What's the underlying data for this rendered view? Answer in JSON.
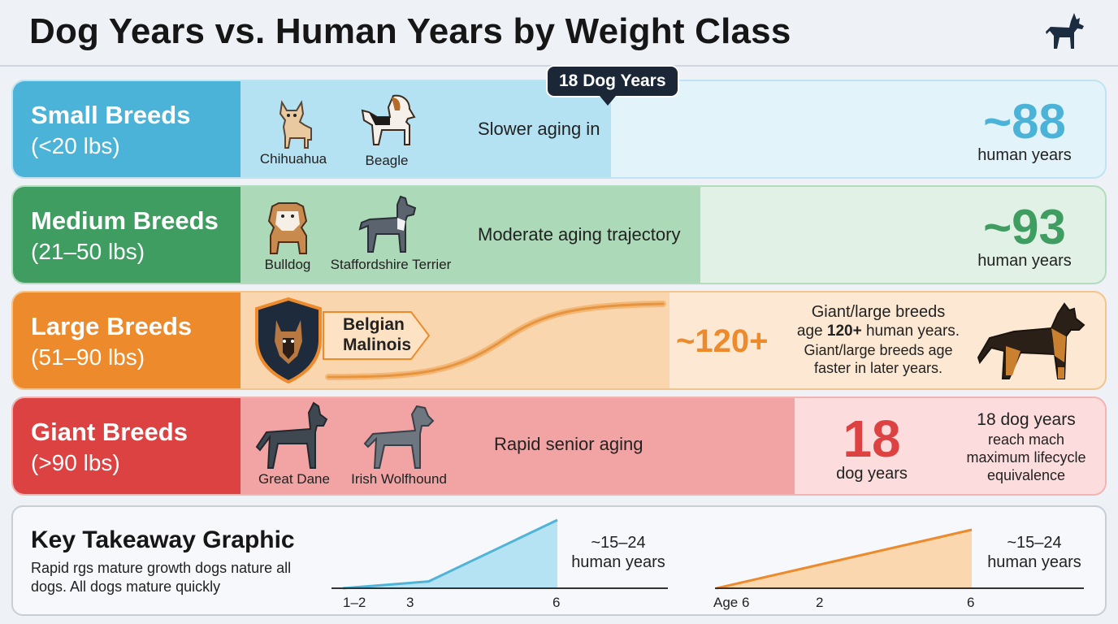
{
  "header": {
    "title": "Dog Years vs. Human Years by Weight Class",
    "logo_icon": "dog-silhouette-icon"
  },
  "callout": {
    "label": "18 Dog Years"
  },
  "rows": {
    "small": {
      "name": "Small Breeds",
      "weight": "(<20 lbs)",
      "breeds": [
        "Chihuahua",
        "Beagle"
      ],
      "trait": "Slower aging in",
      "value": "~88",
      "unit": "human years",
      "color": "#4bb3d8",
      "bar_fraction": 0.41
    },
    "medium": {
      "name": "Medium Breeds",
      "weight": "(21–50 lbs)",
      "breeds": [
        "Bulldog",
        "Staffordshire Terrier"
      ],
      "trait": "Moderate aging trajectory",
      "value": "~93",
      "unit": "human years",
      "color": "#3f9d62",
      "bar_fraction": 0.53
    },
    "large": {
      "name": "Large Breeds",
      "weight": "(51–90 lbs)",
      "badge": "Belgian Malinois",
      "value": "~120+",
      "note_line1": "Giant/large breeds",
      "note_line2_pre": "age ",
      "note_line2_bold": "120+",
      "note_line2_post": " human years.",
      "note_line3": "Giant/large breeds age faster in later years.",
      "color": "#ec8a2c"
    },
    "giant": {
      "name": "Giant Breeds",
      "weight": "(>90 lbs)",
      "breeds": [
        "Great Dane",
        "Irish Wolfhound"
      ],
      "trait": "Rapid senior aging",
      "value": "18",
      "unit": "dog years",
      "note_line1": "18 dog years",
      "note_rest": "reach mach maximum lifecycle equivalence",
      "color": "#dd4242"
    }
  },
  "takeaway": {
    "title": "Key Takeaway Graphic",
    "description": "Rapid rgs mature growth dogs nature all dogs. All dogs  mature quickly",
    "chart_data": [
      {
        "type": "area",
        "x_ticks": [
          "1–2",
          "3",
          "6"
        ],
        "x": [
          1,
          3,
          6
        ],
        "y": [
          0,
          1.5,
          15
        ],
        "color": "#5bbfe0",
        "annotation": "~15–24 human years"
      },
      {
        "type": "area",
        "x_ticks": [
          "Age 6",
          "2",
          "6"
        ],
        "color": "#ec8a2c",
        "annotation": "~15–24 human years"
      }
    ]
  }
}
